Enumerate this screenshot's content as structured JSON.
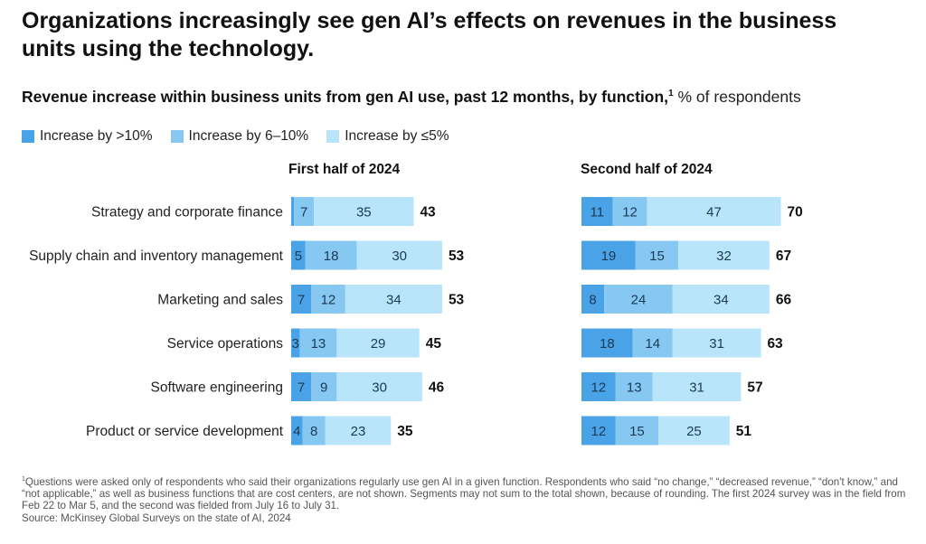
{
  "title": "Organizations increasingly see gen AI’s effects on revenues in the business units using the technology.",
  "subtitle": {
    "main": "Revenue increase within business units from gen AI use, past 12 months, by function,",
    "footnote_marker": "1",
    "unit": "% of respondents"
  },
  "colors": {
    "dark": "#4AA3E6",
    "mid": "#86C8F1",
    "light": "#B9E5FA",
    "text": "#111111"
  },
  "chart_data": {
    "type": "bar",
    "orientation": "horizontal",
    "stacked": true,
    "legend": [
      {
        "name": "Increase by >10%",
        "color_key": "dark"
      },
      {
        "name": "Increase by 6–10%",
        "color_key": "mid"
      },
      {
        "name": "Increase by ≤5%",
        "color_key": "light"
      }
    ],
    "categories": [
      "Strategy and corporate finance",
      "Supply chain and inventory management",
      "Marketing and sales",
      "Service operations",
      "Software engineering",
      "Product or service development"
    ],
    "panels": [
      {
        "title": "First half of 2024",
        "series": [
          {
            "name": "Increase by >10%",
            "values": [
              1,
              5,
              7,
              3,
              7,
              4
            ]
          },
          {
            "name": "Increase by 6–10%",
            "values": [
              7,
              18,
              12,
              13,
              9,
              8
            ]
          },
          {
            "name": "Increase by ≤5%",
            "values": [
              35,
              30,
              34,
              29,
              30,
              23
            ]
          }
        ],
        "totals": [
          43,
          53,
          53,
          45,
          46,
          35
        ]
      },
      {
        "title": "Second half of 2024",
        "series": [
          {
            "name": "Increase by >10%",
            "values": [
              11,
              19,
              8,
              18,
              12,
              12
            ]
          },
          {
            "name": "Increase by 6–10%",
            "values": [
              12,
              15,
              24,
              14,
              13,
              15
            ]
          },
          {
            "name": "Increase by ≤5%",
            "values": [
              47,
              32,
              34,
              31,
              31,
              25
            ]
          }
        ],
        "totals": [
          70,
          67,
          66,
          63,
          57,
          51
        ]
      }
    ]
  },
  "footnote": {
    "marker": "1",
    "text": "Questions were asked only of respondents who said their organizations regularly use gen AI in a given function. Respondents who said “no change,” “decreased revenue,” “don't know,” and “not applicable,” as well as business functions that are cost centers, are not shown. Segments may not sum to the total shown, because of rounding. The first 2024 survey was in the field from Feb 22 to Mar 5, and the second was fielded from July 16 to July 31.",
    "source": "Source: McKinsey Global Surveys on the state of AI, 2024"
  }
}
